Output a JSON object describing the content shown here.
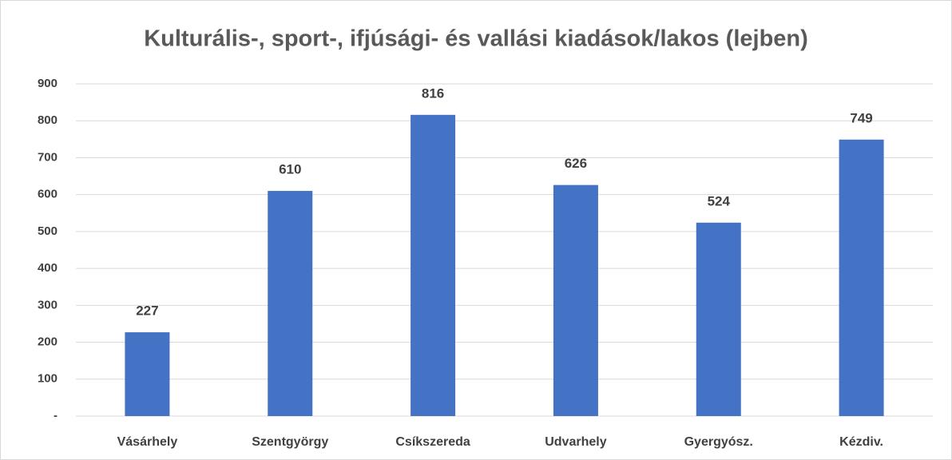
{
  "chart_data": {
    "type": "bar",
    "title": "Kulturális-, sport-, ifjúsági- és vallási kiadások/lakos (lejben)",
    "categories": [
      "Vásárhely",
      "Szentgyörgy",
      "Csíkszereda",
      "Udvarhely",
      "Gyergyósz.",
      "Kézdiv."
    ],
    "values": [
      227,
      610,
      816,
      626,
      524,
      749
    ],
    "color": "#4472c4",
    "ylim": [
      0,
      900
    ],
    "yticks": [
      {
        "value": 0,
        "label": "-"
      },
      100,
      200,
      300,
      400,
      500,
      600,
      700,
      800,
      900
    ],
    "grid": true
  }
}
